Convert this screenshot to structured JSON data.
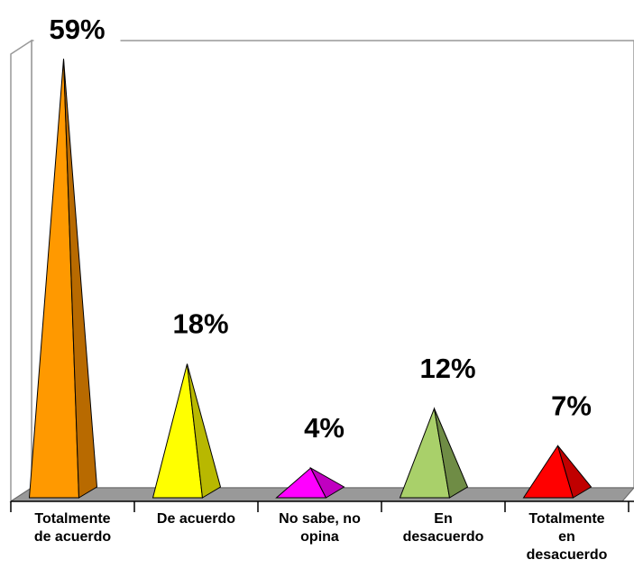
{
  "chart_data": {
    "type": "pyramid",
    "categories": [
      "Totalmente de acuerdo",
      "De acuerdo",
      "No sabe, no opina",
      "En desacuerdo",
      "Totalmente en desacuerdo"
    ],
    "values": [
      59,
      18,
      4,
      12,
      7
    ],
    "value_labels": [
      "59%",
      "18%",
      "4%",
      "12%",
      "7%"
    ],
    "colors": [
      "#ff9900",
      "#ffff00",
      "#ff00ff",
      "#a9d06a",
      "#ff0000"
    ],
    "side_colors": [
      "#b86a00",
      "#b8b800",
      "#c000c0",
      "#6f8c45",
      "#c00000"
    ]
  }
}
